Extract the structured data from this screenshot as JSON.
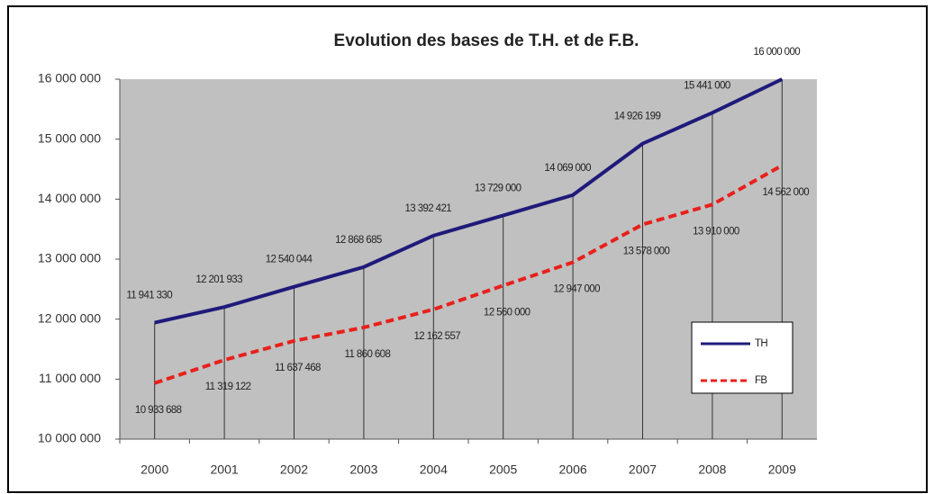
{
  "chart_data": {
    "type": "line",
    "title": "Evolution des bases de T.H. et de F.B.",
    "categories": [
      "2000",
      "2001",
      "2002",
      "2003",
      "2004",
      "2005",
      "2006",
      "2007",
      "2008",
      "2009"
    ],
    "series": [
      {
        "name": "TH",
        "color": "#1f1a7a",
        "style": "solid",
        "values": [
          11941330,
          12201933,
          12540044,
          12868685,
          13392421,
          13729000,
          14069000,
          14926199,
          15441000,
          16000000
        ],
        "value_labels": [
          "11 941 330",
          "12 201 933",
          "12 540 044",
          "12 868 685",
          "13 392 421",
          "13 729 000",
          "14 069 000",
          "14 926 199",
          "15 441 000",
          "16 000 000"
        ]
      },
      {
        "name": "FB",
        "color": "#e8201b",
        "style": "dashed",
        "values": [
          10933688,
          11319122,
          11637468,
          11860608,
          12162557,
          12560000,
          12947000,
          13578000,
          13910000,
          14562000
        ],
        "value_labels": [
          "10 933 688",
          "11 319 122",
          "11 637 468",
          "11 860 608",
          "12 162 557",
          "12 560 000",
          "12 947 000",
          "13 578 000",
          "13 910 000",
          "14 562 000"
        ]
      }
    ],
    "ylim": [
      10000000,
      16000000
    ],
    "yticks": [
      {
        "value": 10000000,
        "label": "10 000 000"
      },
      {
        "value": 11000000,
        "label": "11 000 000"
      },
      {
        "value": 12000000,
        "label": "12 000 000"
      },
      {
        "value": 13000000,
        "label": "13 000 000"
      },
      {
        "value": 14000000,
        "label": "14 000 000"
      },
      {
        "value": 15000000,
        "label": "15 000 000"
      },
      {
        "value": 16000000,
        "label": "16 000 000"
      }
    ],
    "legend": "lower right"
  }
}
